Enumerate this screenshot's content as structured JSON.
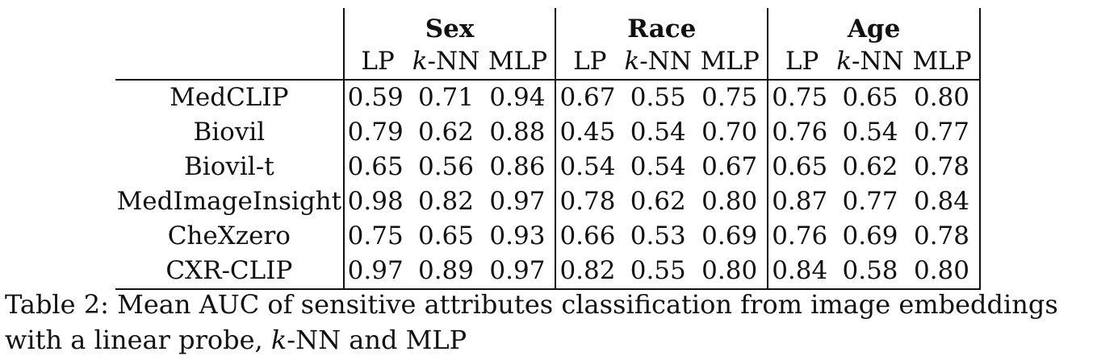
{
  "table": {
    "groups": [
      "Sex",
      "Race",
      "Age"
    ],
    "methods": [
      {
        "prefix": "LP",
        "italic": "",
        "suffix": ""
      },
      {
        "prefix": "",
        "italic": "k",
        "suffix": "-NN"
      },
      {
        "prefix": "MLP",
        "italic": "",
        "suffix": ""
      }
    ],
    "rows": [
      {
        "model": "MedCLIP",
        "values": [
          "0.59",
          "0.71",
          "0.94",
          "0.67",
          "0.55",
          "0.75",
          "0.75",
          "0.65",
          "0.80"
        ]
      },
      {
        "model": "Biovil",
        "values": [
          "0.79",
          "0.62",
          "0.88",
          "0.45",
          "0.54",
          "0.70",
          "0.76",
          "0.54",
          "0.77"
        ]
      },
      {
        "model": "Biovil-t",
        "values": [
          "0.65",
          "0.56",
          "0.86",
          "0.54",
          "0.54",
          "0.67",
          "0.65",
          "0.62",
          "0.78"
        ]
      },
      {
        "model": "MedImageInsight",
        "values": [
          "0.98",
          "0.82",
          "0.97",
          "0.78",
          "0.62",
          "0.80",
          "0.87",
          "0.77",
          "0.84"
        ]
      },
      {
        "model": "CheXzero",
        "values": [
          "0.75",
          "0.65",
          "0.93",
          "0.66",
          "0.53",
          "0.69",
          "0.76",
          "0.69",
          "0.78"
        ]
      },
      {
        "model": "CXR-CLIP",
        "values": [
          "0.97",
          "0.89",
          "0.97",
          "0.82",
          "0.55",
          "0.80",
          "0.84",
          "0.58",
          "0.80"
        ]
      }
    ]
  },
  "caption": {
    "text_a": "Table 2: Mean AUC of sensitive attributes classification from image embeddings with a linear probe, ",
    "italic": "k",
    "text_b": "-NN and MLP"
  }
}
